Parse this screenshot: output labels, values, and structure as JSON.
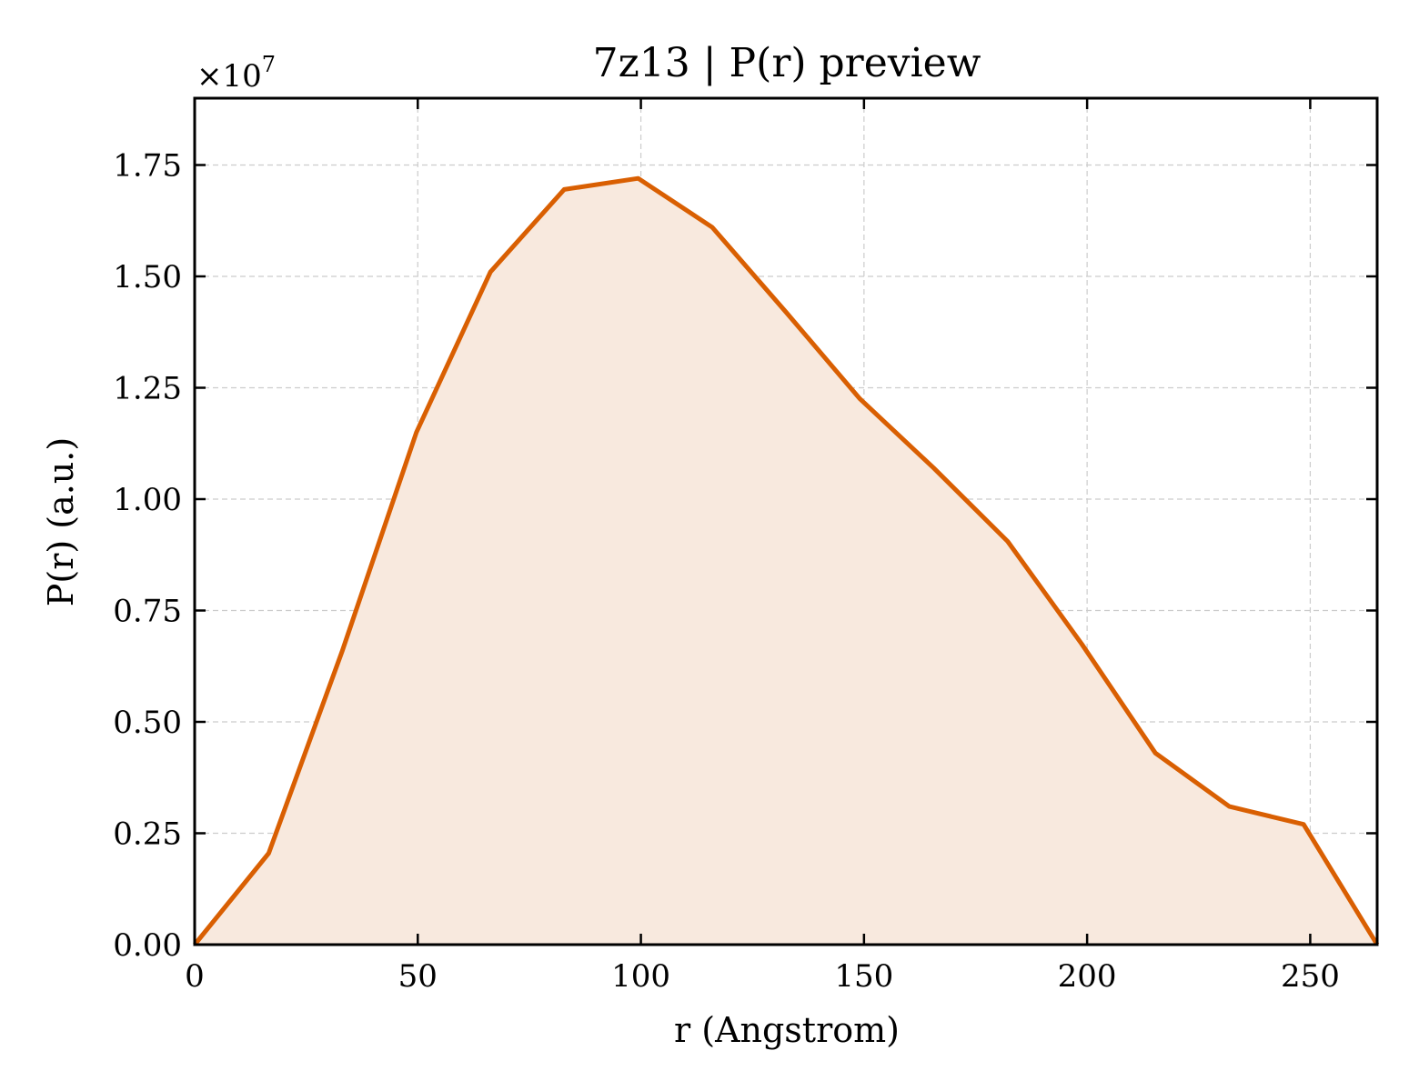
{
  "chart_data": {
    "type": "area",
    "title": "7z13 | P(r) preview",
    "xlabel": "r (Angstrom)",
    "ylabel": "P(r) (a.u.)",
    "y_offset_label": "×10",
    "y_offset_exponent": "7",
    "xlim": [
      0,
      265
    ],
    "ylim": [
      0,
      1.9
    ],
    "xticks": [
      0,
      50,
      100,
      150,
      200,
      250
    ],
    "xtick_labels": [
      "0",
      "50",
      "100",
      "150",
      "200",
      "250"
    ],
    "yticks": [
      0,
      0.25,
      0.5,
      0.75,
      1.0,
      1.25,
      1.5,
      1.75
    ],
    "ytick_labels": [
      "0.00",
      "0.25",
      "0.50",
      "0.75",
      "1.00",
      "1.25",
      "1.50",
      "1.75"
    ],
    "grid": true,
    "line_color": "#d95f02",
    "fill_color": "#f8e9de",
    "series": [
      {
        "x": [
          0,
          16.6,
          33.1,
          49.7,
          66.3,
          82.8,
          99.4,
          116.0,
          132.5,
          149.1,
          165.6,
          182.2,
          198.8,
          215.3,
          231.9,
          248.5,
          265.0
        ],
        "y": [
          0.0,
          0.205,
          0.66,
          1.15,
          1.51,
          1.695,
          1.72,
          1.61,
          1.42,
          1.225,
          1.07,
          0.905,
          0.675,
          0.43,
          0.31,
          0.27,
          0.0
        ]
      }
    ]
  }
}
